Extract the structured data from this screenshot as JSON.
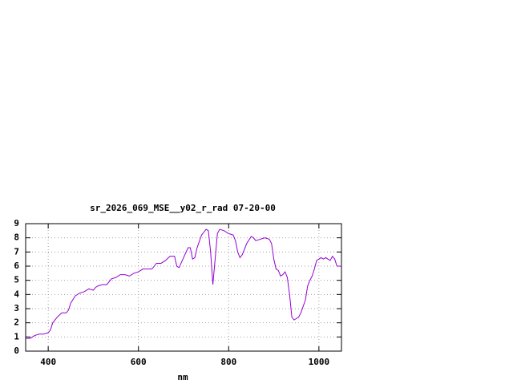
{
  "chart_data": {
    "type": "line",
    "title": "sr_2026_069_MSE__y02_r_rad 07-20-00",
    "x_label": "nm",
    "x": [
      350,
      360,
      370,
      380,
      390,
      400,
      405,
      410,
      420,
      430,
      440,
      445,
      450,
      460,
      470,
      480,
      490,
      500,
      505,
      510,
      520,
      530,
      540,
      550,
      560,
      570,
      580,
      590,
      600,
      610,
      620,
      630,
      640,
      650,
      660,
      670,
      680,
      685,
      690,
      700,
      710,
      715,
      720,
      725,
      730,
      740,
      750,
      755,
      760,
      765,
      770,
      775,
      780,
      790,
      800,
      810,
      815,
      820,
      825,
      830,
      840,
      850,
      855,
      860,
      870,
      880,
      890,
      895,
      900,
      905,
      910,
      915,
      920,
      925,
      930,
      935,
      940,
      945,
      950,
      955,
      960,
      970,
      975,
      980,
      985,
      990,
      995,
      1000,
      1005,
      1010,
      1015,
      1020,
      1025,
      1030,
      1035,
      1040,
      1050
    ],
    "series": [
      {
        "color": "#9400d3",
        "values": [
          0.9,
          0.9,
          1.1,
          1.2,
          1.2,
          1.3,
          1.5,
          2.0,
          2.4,
          2.7,
          2.7,
          2.9,
          3.4,
          3.9,
          4.1,
          4.2,
          4.4,
          4.3,
          4.5,
          4.6,
          4.7,
          4.7,
          5.1,
          5.2,
          5.4,
          5.4,
          5.3,
          5.5,
          5.6,
          5.8,
          5.8,
          5.8,
          6.2,
          6.2,
          6.4,
          6.7,
          6.7,
          6.0,
          5.9,
          6.6,
          7.3,
          7.3,
          6.5,
          6.6,
          7.3,
          8.2,
          8.6,
          8.5,
          7.0,
          4.7,
          6.5,
          8.3,
          8.6,
          8.5,
          8.3,
          8.2,
          7.8,
          7.0,
          6.6,
          6.8,
          7.6,
          8.1,
          8.0,
          7.8,
          7.9,
          8.0,
          7.9,
          7.6,
          6.5,
          5.8,
          5.7,
          5.3,
          5.4,
          5.6,
          5.2,
          4.0,
          2.4,
          2.2,
          2.3,
          2.4,
          2.7,
          3.6,
          4.6,
          5.0,
          5.3,
          5.8,
          6.4,
          6.5,
          6.6,
          6.5,
          6.6,
          6.5,
          6.4,
          6.7,
          6.5,
          6.0,
          6.0
        ]
      }
    ],
    "xlim": [
      350,
      1050
    ],
    "xticks": [
      400,
      600,
      800,
      1000
    ],
    "ylim": [
      0,
      9
    ],
    "yticks": [
      0,
      1,
      2,
      3,
      4,
      5,
      6,
      7,
      8,
      9
    ],
    "grid": true
  }
}
